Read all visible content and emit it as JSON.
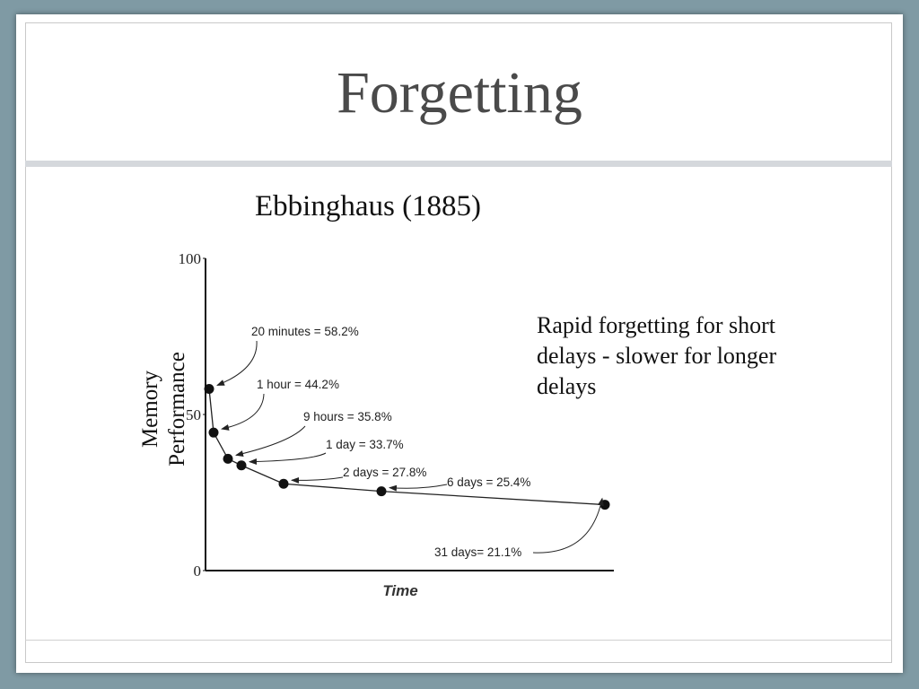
{
  "slide": {
    "title": "Forgetting",
    "subtitle": "Ebbinghaus (1885)",
    "note": "Rapid forgetting for short delays - slower for longer delays"
  },
  "chart_data": {
    "type": "line",
    "xlabel": "Time",
    "ylabel_lines": [
      "Memory",
      "Performance"
    ],
    "ylim": [
      0,
      100
    ],
    "yticks": [
      "0",
      "50",
      "100"
    ],
    "grid": false,
    "points": [
      {
        "label": "20 minutes = 58.2%",
        "y": 58.2
      },
      {
        "label": "1 hour = 44.2%",
        "y": 44.2
      },
      {
        "label": "9 hours = 35.8%",
        "y": 35.8
      },
      {
        "label": "1 day = 33.7%",
        "y": 33.7
      },
      {
        "label": "2 days = 27.8%",
        "y": 27.8
      },
      {
        "label": "6 days = 25.4%",
        "y": 25.4
      },
      {
        "label": "31 days= 21.1%",
        "y": 21.1
      }
    ]
  }
}
